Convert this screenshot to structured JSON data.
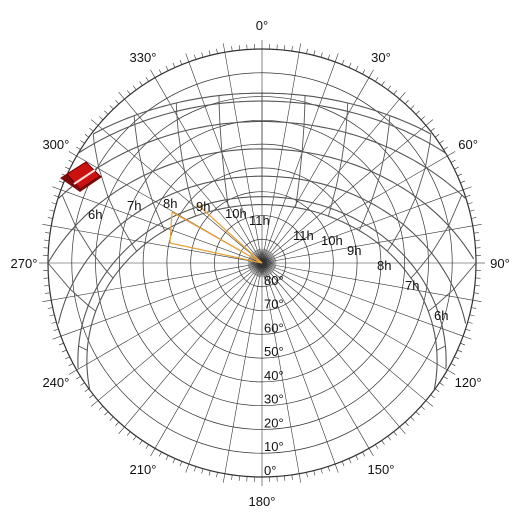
{
  "sun_path_diagram": {
    "azimuth_labels": [
      {
        "deg": 0,
        "text": "0°"
      },
      {
        "deg": 30,
        "text": "30°"
      },
      {
        "deg": 60,
        "text": "60°"
      },
      {
        "deg": 90,
        "text": "90°"
      },
      {
        "deg": 120,
        "text": "120°"
      },
      {
        "deg": 150,
        "text": "150°"
      },
      {
        "deg": 180,
        "text": "180°"
      },
      {
        "deg": 210,
        "text": "210°"
      },
      {
        "deg": 240,
        "text": "240°"
      },
      {
        "deg": 270,
        "text": "270°"
      },
      {
        "deg": 300,
        "text": "300°"
      },
      {
        "deg": 330,
        "text": "330°"
      }
    ],
    "altitude_labels": [
      "0°",
      "10°",
      "20°",
      "30°",
      "40°",
      "50°",
      "60°",
      "70°",
      "80°"
    ],
    "hour_labels_left": [
      "6h",
      "7h",
      "8h",
      "9h",
      "10h",
      "11h"
    ],
    "hour_labels_right": [
      "11h",
      "10h",
      "9h",
      "8h",
      "7h",
      "6h"
    ],
    "colors": {
      "grid": "#333333",
      "sun_path": "#555555",
      "sun_ray": "#e8a33a",
      "marker": "#cc1111"
    }
  }
}
